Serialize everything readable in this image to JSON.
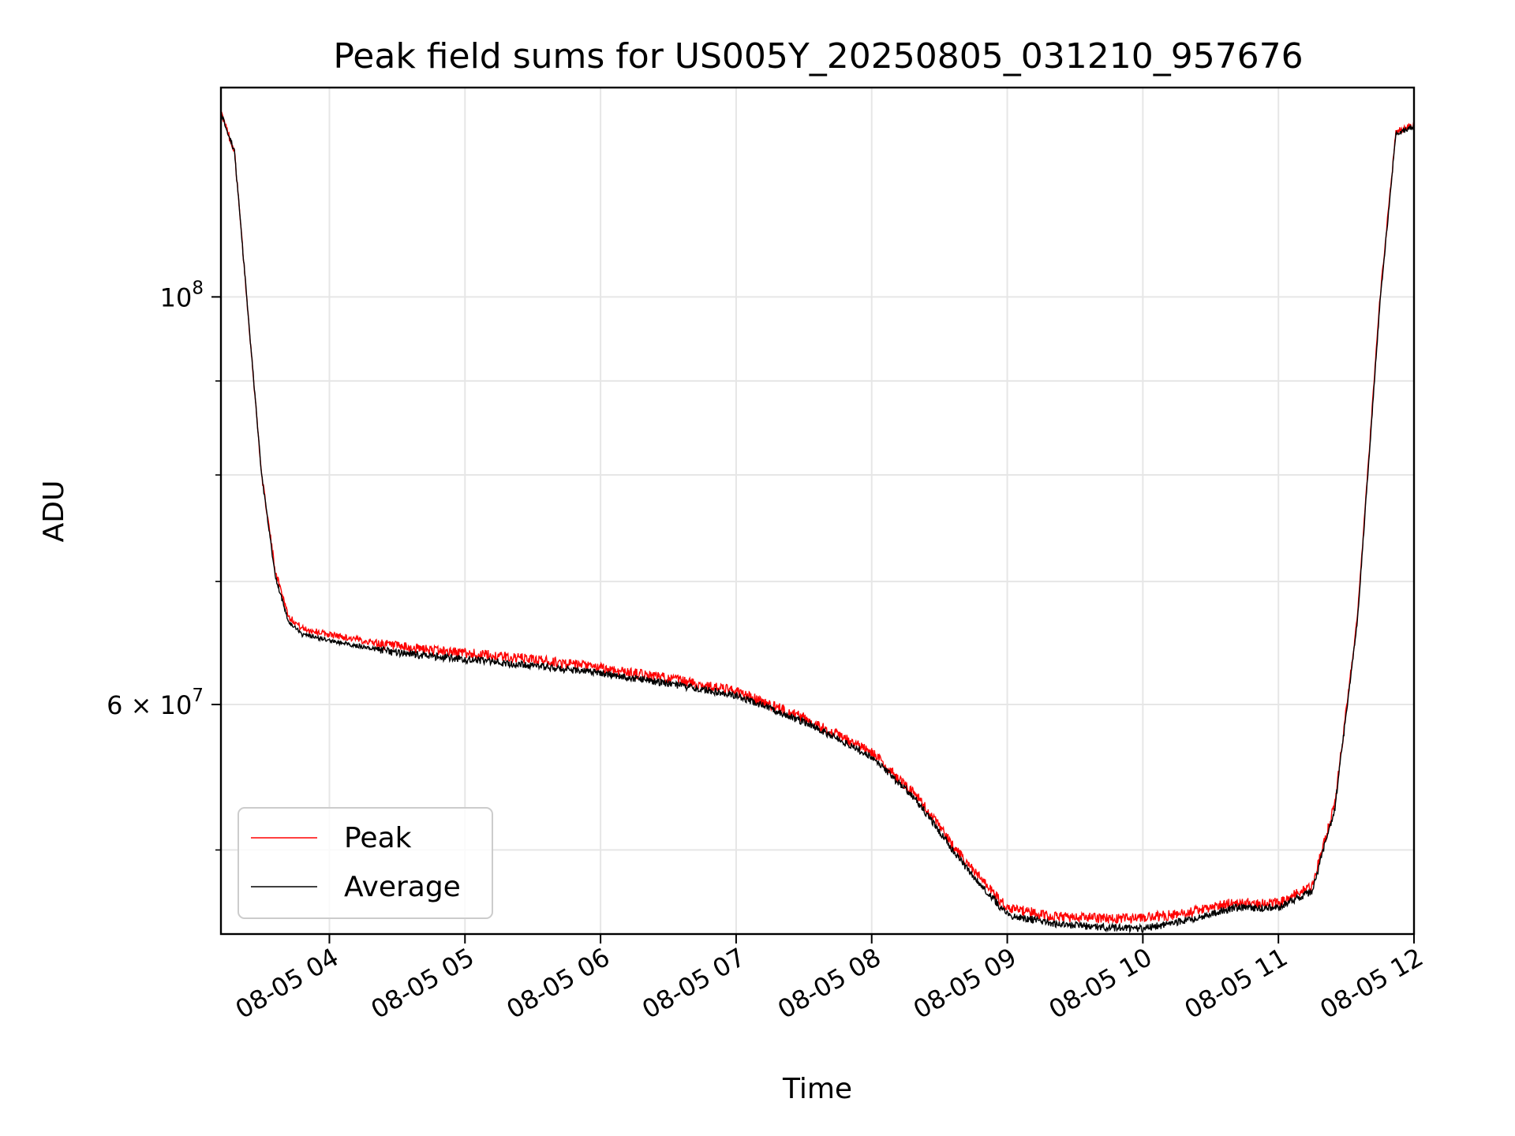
{
  "chart_data": {
    "type": "line",
    "title": "Peak field sums for US005Y_20250805_031210_957676",
    "xlabel": "Time",
    "ylabel": "ADU",
    "yscale": "log",
    "grid": true,
    "legend_position": "lower-left",
    "x_ticks": [
      "08-05 04",
      "08-05 05",
      "08-05 06",
      "08-05 07",
      "08-05 08",
      "08-05 09",
      "08-05 10",
      "08-05 11",
      "08-05 12"
    ],
    "y_major_ticks": [
      {
        "value": 100000000,
        "mantissa": "",
        "base": "10",
        "exponent": "8"
      },
      {
        "value": 60000000,
        "mantissa": "6 × ",
        "base": "10",
        "exponent": "7"
      }
    ],
    "y_minor_ticks": [
      50000000,
      70000000,
      80000000,
      90000000
    ],
    "xlim": [
      "08-05 03:12",
      "08-05 12:00"
    ],
    "ylim": [
      45000000,
      130000000
    ],
    "x": [
      "08-05 03:12",
      "08-05 03:18",
      "08-05 03:24",
      "08-05 03:30",
      "08-05 03:36",
      "08-05 03:42",
      "08-05 03:48",
      "08-05 04:00",
      "08-05 04:30",
      "08-05 05:00",
      "08-05 05:30",
      "08-05 06:00",
      "08-05 06:30",
      "08-05 07:00",
      "08-05 07:30",
      "08-05 08:00",
      "08-05 08:20",
      "08-05 08:40",
      "08-05 09:00",
      "08-05 09:20",
      "08-05 09:40",
      "08-05 10:00",
      "08-05 10:20",
      "08-05 10:40",
      "08-05 11:00",
      "08-05 11:15",
      "08-05 11:25",
      "08-05 11:35",
      "08-05 11:45",
      "08-05 11:52",
      "08-05 12:00"
    ],
    "series": [
      {
        "name": "Peak",
        "color": "#ff0000",
        "values": [
          126000000,
          120000000,
          98000000,
          80000000,
          71000000,
          67000000,
          66000000,
          65500000,
          64500000,
          64000000,
          63500000,
          62800000,
          62000000,
          61000000,
          59000000,
          56500000,
          53500000,
          49500000,
          46500000,
          46000000,
          45900000,
          45900000,
          46200000,
          46800000,
          46800000,
          47800000,
          53000000,
          67000000,
          100000000,
          123000000,
          124000000
        ]
      },
      {
        "name": "Average",
        "color": "#000000",
        "values": [
          126000000,
          120000000,
          98000000,
          80000000,
          70500000,
          66500000,
          65500000,
          65000000,
          64000000,
          63500000,
          63000000,
          62400000,
          61600000,
          60700000,
          58700000,
          56200000,
          53200000,
          49200000,
          46100000,
          45600000,
          45400000,
          45300000,
          45800000,
          46500000,
          46500000,
          47500000,
          52700000,
          66700000,
          99500000,
          122700000,
          123800000
        ]
      }
    ]
  }
}
